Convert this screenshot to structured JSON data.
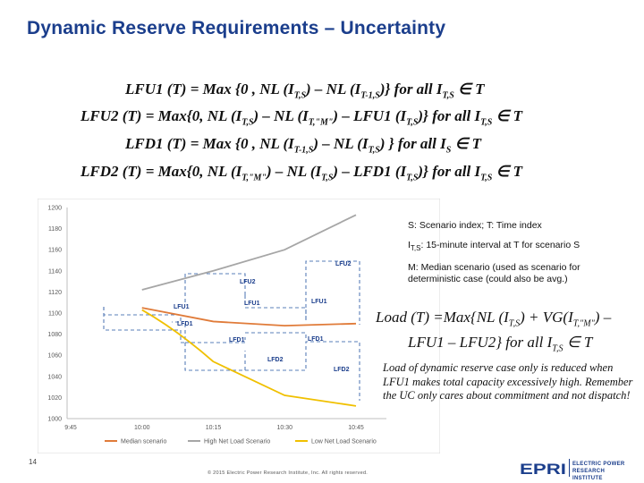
{
  "title": "Dynamic Reserve Requirements – Uncertainty",
  "equations": [
    {
      "lhs": "LFU1 (T)",
      "rhs_a": " = Max {0 , NL (I",
      "sub_a": "T,S",
      "rhs_b": ") – NL (I",
      "sub_b": "T-1,S",
      "rhs_c": ")} for all I",
      "sub_c": "T,S",
      "rhs_d": " ∈ T"
    },
    {
      "lhs": "LFU2 (T)",
      "rhs_a": " = Max{0, NL (I",
      "sub_a": "T,S",
      "rhs_b": ") – NL (I",
      "sub_b": "T,\"M\"",
      "rhs_c": ") – LFU1 (I",
      "sub_c": "T,S",
      "rhs_d": ")} for all I",
      "sub_d": "T,S",
      "rhs_e": " ∈ T"
    },
    {
      "lhs": "LFD1 (T)",
      "rhs_a": " = Max {0 , NL (I",
      "sub_a": "T-1,S",
      "rhs_b": ") – NL (I",
      "sub_b": "T,S",
      "rhs_c": ") } for all I",
      "sub_c": "S",
      "rhs_d": " ∈ T"
    },
    {
      "lhs": "LFD2 (T)",
      "rhs_a": " = Max{0, NL (I",
      "sub_a": "T,\"M\"",
      "rhs_b": ") – NL (I",
      "sub_b": "T,S",
      "rhs_c": ") – LFD1 (I",
      "sub_c": "T,S",
      "rhs_d": ")} for all I",
      "sub_d": "T,S",
      "rhs_e": " ∈ T"
    }
  ],
  "notes": {
    "scenario": "S: Scenario index; T: Time index",
    "interval_prefix": "I",
    "interval_sub": "T,S",
    "interval_text": ": 15-minute interval at T for scenario S",
    "median": "M: Median scenario (used as scenario for deterministic case (could also be avg.)"
  },
  "load_equation": {
    "line1_a": "Load (T) =Max{NL (I",
    "line1_sub1": "T,S",
    "line1_b": ") + VG(I",
    "line1_sub2": "T,\"M\"",
    "line1_c": ") –",
    "line2_a": "LFU1 – LFU2} for all I",
    "line2_sub": "T,S",
    "line2_b": " ∈ T"
  },
  "load_note": "Load of dynamic reserve case only is reduced when LFU1 makes total capacity excessively high. Remember the UC only cares about commitment and not dispatch!",
  "page_number": "14",
  "copyright": "© 2015 Electric Power Research Institute, Inc. All rights reserved.",
  "logo": {
    "mark": "EPRI",
    "line1": "ELECTRIC POWER",
    "line2": "RESEARCH INSTITUTE",
    "color": "#1b3e8c"
  },
  "chart_data": {
    "type": "line",
    "x": [
      "9:45",
      "10:00",
      "10:15",
      "10:30",
      "10:45"
    ],
    "ylim": [
      1000,
      1200
    ],
    "yticks": [
      1000,
      1020,
      1040,
      1060,
      1080,
      1100,
      1120,
      1140,
      1160,
      1180,
      1200
    ],
    "grid": false,
    "legend_position": "bottom",
    "series": [
      {
        "name": "Median scenario",
        "color": "#e07b39",
        "values": [
          null,
          1105,
          1092,
          1088,
          1090
        ]
      },
      {
        "name": "High Net Load Scenario",
        "color": "#a6a6a6",
        "values": [
          null,
          1122,
          1140,
          1160,
          1193
        ]
      },
      {
        "name": "Low Net Load Scenario",
        "color": "#f0c000",
        "values": [
          null,
          1103,
          1054,
          1022,
          1012
        ]
      }
    ],
    "annotations": [
      "LFU2",
      "LFU2",
      "LFU1",
      "LFU1",
      "LFU1",
      "LFD1",
      "LFD1",
      "LFD1",
      "LFD2",
      "LFD2"
    ]
  }
}
